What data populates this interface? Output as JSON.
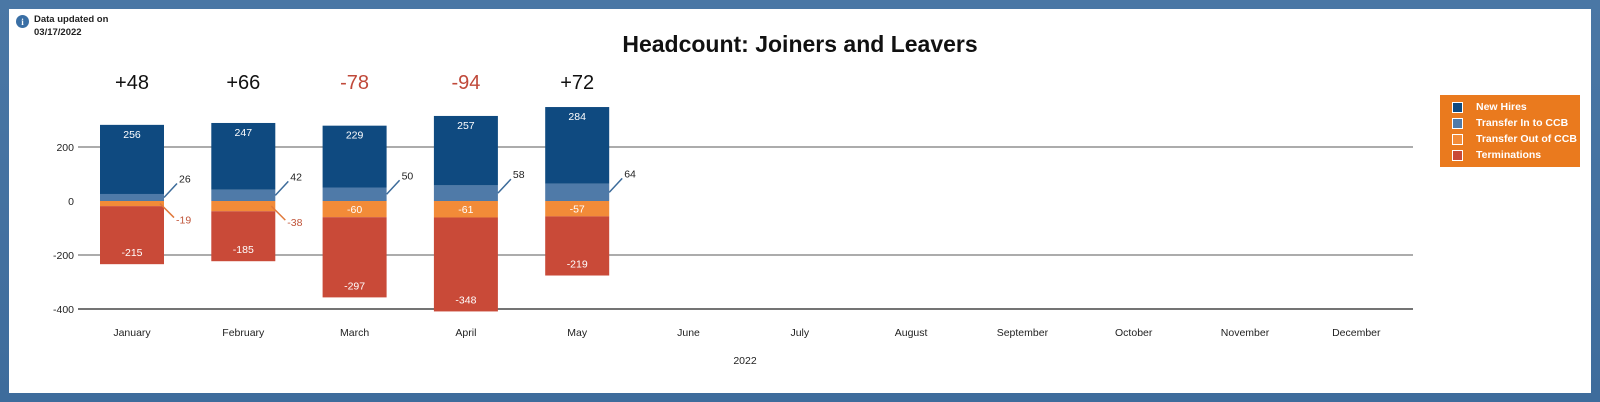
{
  "note": {
    "line1": "Data updated on",
    "line2": "03/17/2022"
  },
  "chart_data": {
    "type": "bar",
    "title": "Headcount: Joiners and Leavers",
    "xlabel": "2022",
    "ylabel": "",
    "stacked": true,
    "categories": [
      "January",
      "February",
      "March",
      "April",
      "May",
      "June",
      "July",
      "August",
      "September",
      "October",
      "November",
      "December"
    ],
    "ylim": [
      -400,
      300
    ],
    "yticks": [
      200,
      0,
      -200,
      -400
    ],
    "grid": true,
    "legend_position": "right",
    "net_labels": [
      "+48",
      "+66",
      "-78",
      "-94",
      "+72"
    ],
    "series": [
      {
        "name": "New Hires",
        "color": "#0f4a80",
        "values": [
          256,
          247,
          229,
          257,
          284,
          null,
          null,
          null,
          null,
          null,
          null,
          null
        ]
      },
      {
        "name": "Transfer In to CCB",
        "color": "#4f7aa8",
        "values": [
          26,
          42,
          50,
          58,
          64,
          null,
          null,
          null,
          null,
          null,
          null,
          null
        ]
      },
      {
        "name": "Transfer Out of CCB",
        "color": "#f28b38",
        "values": [
          -19,
          -38,
          -60,
          -61,
          -57,
          null,
          null,
          null,
          null,
          null,
          null,
          null
        ]
      },
      {
        "name": "Terminations",
        "color": "#c94a38",
        "values": [
          -215,
          -185,
          -297,
          -348,
          -219,
          null,
          null,
          null,
          null,
          null,
          null,
          null
        ]
      }
    ]
  }
}
